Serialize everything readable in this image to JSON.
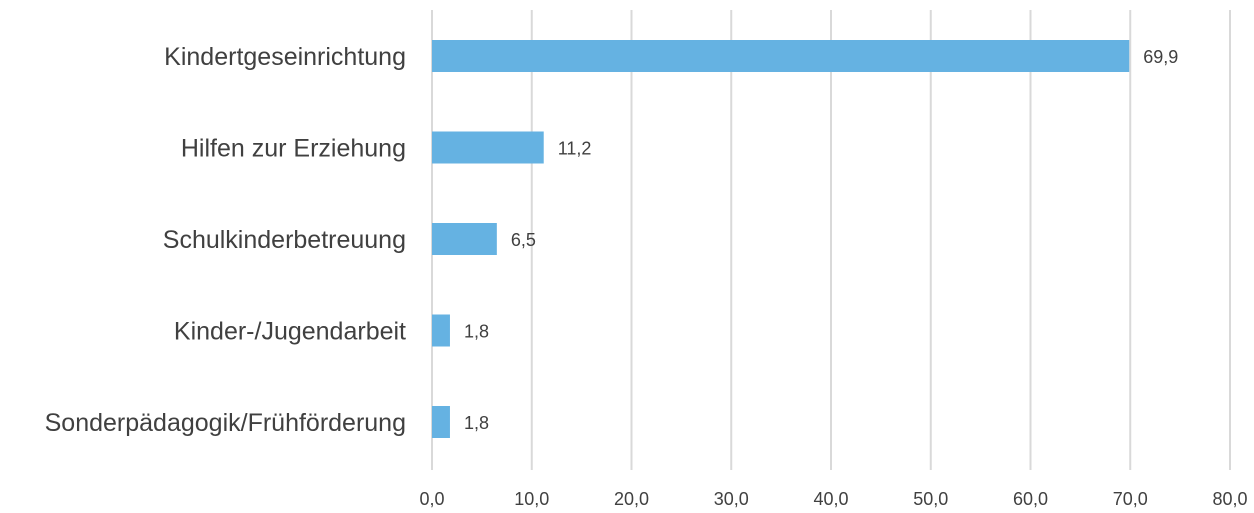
{
  "chart_data": {
    "type": "bar",
    "orientation": "horizontal",
    "title": "",
    "xlabel": "",
    "ylabel": "",
    "categories": [
      "Kindertgeseinrichtung",
      "Hilfen zur Erziehung",
      "Schulkinderbetreuung",
      "Kinder-/Jugendarbeit",
      "Sonderpädagogik/Frühförderung"
    ],
    "values": [
      69.9,
      11.2,
      6.5,
      1.8,
      1.8
    ],
    "data_labels": [
      "69,9",
      "11,2",
      "6,5",
      "1,8",
      "1,8"
    ],
    "xlim": [
      0,
      80
    ],
    "x_ticks": [
      0,
      10,
      20,
      30,
      40,
      50,
      60,
      70,
      80
    ],
    "x_tick_labels": [
      "0,0",
      "10,0",
      "20,0",
      "30,0",
      "40,0",
      "50,0",
      "60,0",
      "70,0",
      "80,0"
    ],
    "grid": "vertical",
    "legend": "none",
    "colors": {
      "bar": "#65b2e2",
      "grid": "#d9d9d9",
      "text": "#404040"
    }
  }
}
